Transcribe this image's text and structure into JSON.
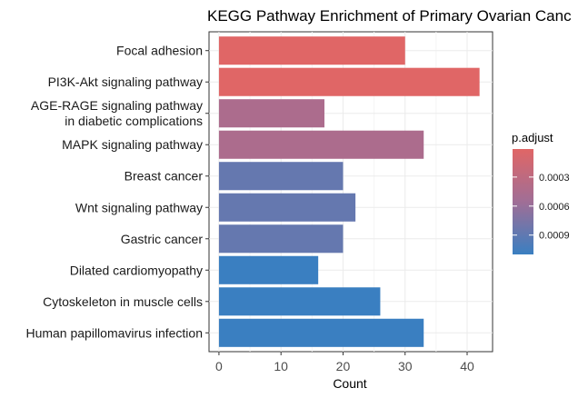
{
  "chart_data": {
    "type": "bar",
    "orientation": "horizontal",
    "title": "KEGG Pathway Enrichment of Primary Ovarian Canc",
    "xlabel": "Count",
    "ylabel": "",
    "xlim": [
      0,
      42
    ],
    "xticks": [
      "0",
      "10",
      "20",
      "30",
      "40"
    ],
    "xtick_values": [
      0,
      10,
      20,
      30,
      40
    ],
    "grid": true,
    "categories": [
      [
        "Focal adhesion"
      ],
      [
        "PI3K-Akt signaling pathway"
      ],
      [
        "AGE-RAGE signaling pathway",
        "in diabetic complications"
      ],
      [
        "MAPK signaling pathway"
      ],
      [
        "Breast cancer"
      ],
      [
        "Wnt signaling pathway"
      ],
      [
        "Gastric cancer"
      ],
      [
        "Dilated cardiomyopathy"
      ],
      [
        "Cytoskeleton in muscle cells"
      ],
      [
        "Human papillomavirus infection"
      ]
    ],
    "values": [
      30,
      42,
      17,
      33,
      20,
      22,
      20,
      16,
      26,
      33
    ],
    "p_adjust": [
      1e-05,
      1e-05,
      0.00045,
      0.00045,
      0.00087,
      0.00087,
      0.00087,
      0.0011,
      0.0011,
      0.0011
    ],
    "legend": {
      "title": "p.adjust",
      "placement": "right",
      "ticks": [
        "0.0003",
        "0.0006",
        "0.0009"
      ],
      "tick_values": [
        0.0003,
        0.0006,
        0.0009
      ],
      "range": [
        1e-05,
        0.0011
      ],
      "color_low": "#e06666",
      "color_high": "#3a7fc1"
    }
  }
}
